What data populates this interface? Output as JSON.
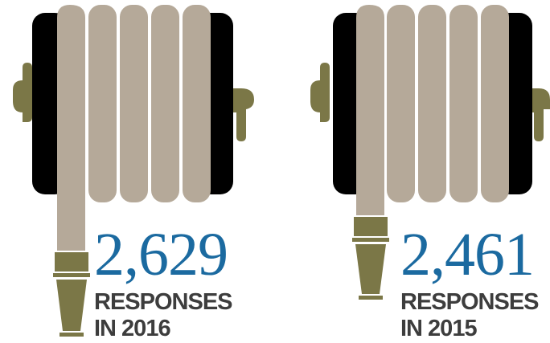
{
  "colors": {
    "hose": "#b5a999",
    "reel_frame": "#000000",
    "brass": "#7b7747",
    "number": "#1b6aa0",
    "caption": "#3d3d3d",
    "background": "#ffffff"
  },
  "icons": [
    "hose-reel-icon",
    "hose-reel-icon"
  ],
  "stats": [
    {
      "value": "2,629",
      "line1": "RESPONSES",
      "line2": "IN 2016"
    },
    {
      "value": "2,461",
      "line1": "RESPONSES",
      "line2": "IN 2015"
    }
  ]
}
